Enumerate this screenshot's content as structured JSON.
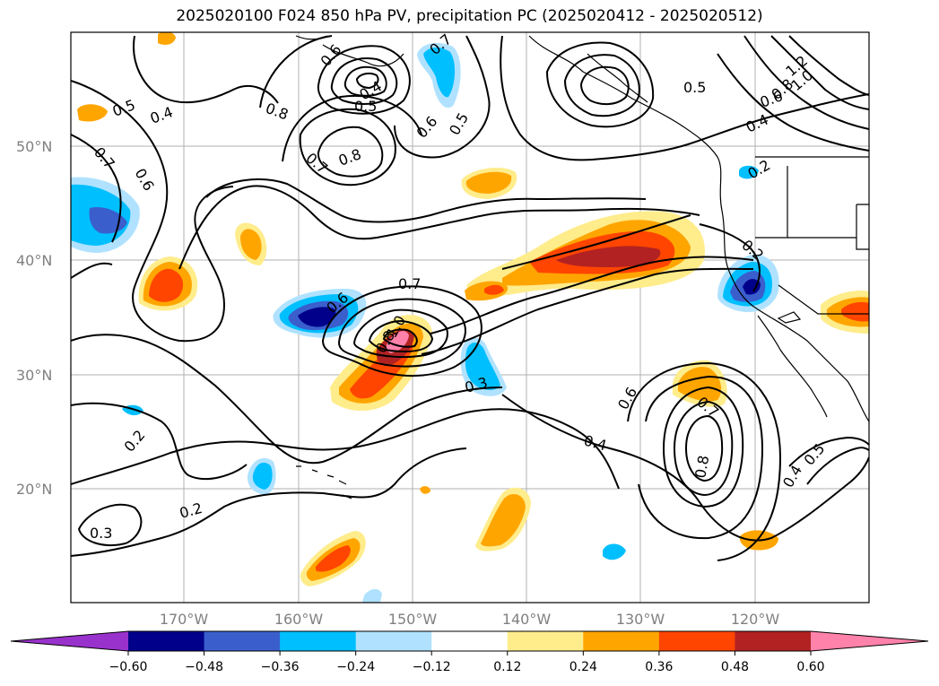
{
  "title": "2025020100 F024 850 hPa PV, precipitation PC (2025020412 - 2025020512)",
  "lat_labels": [
    "50°N",
    "40°N",
    "30°N",
    "20°N"
  ],
  "lon_labels": [
    "170°W",
    "160°W",
    "150°W",
    "140°W",
    "130°W",
    "120°W"
  ],
  "contour_labels": [
    "0.5",
    "0.4",
    "0.7",
    "0.6",
    "0.8",
    "0.4",
    "0.5",
    "0.7",
    "0.8",
    "0.6",
    "0.5",
    "0.6",
    "0.7",
    "0.5",
    "1.2",
    "1.0",
    "0.8",
    "0.6",
    "0.4",
    "0.2",
    "0.2",
    "0.6",
    "0.7",
    "0.8",
    "1.0",
    "0.3",
    "0.6",
    "0.7",
    "0.4",
    "0.8",
    "0.4",
    "0.5",
    "0.2",
    "0.3",
    "0.2"
  ],
  "colorbar": {
    "colors": [
      "#9932cc",
      "#00008b",
      "#3a5fcd",
      "#00bfff",
      "#b0e2ff",
      "#ffffff",
      "#ffec8b",
      "#ffa500",
      "#ff4500",
      "#b22222",
      "#ff82ab"
    ],
    "tick_labels": [
      "−0.60",
      "−0.48",
      "−0.36",
      "−0.24",
      "−0.12",
      "0.12",
      "0.24",
      "0.36",
      "0.48",
      "0.60"
    ]
  },
  "chart_data": {
    "type": "contour_map",
    "variable_lines": "850 hPa PV",
    "variable_fill": "precipitation PC",
    "init": "2025020100",
    "forecast_hour": "F024",
    "valid_window": "2025020412 - 2025020512",
    "lon_range": [
      -180,
      -110
    ],
    "lat_range": [
      10,
      60
    ],
    "fill_levels": [
      -0.6,
      -0.48,
      -0.36,
      -0.24,
      -0.12,
      0.12,
      0.24,
      0.36,
      0.48,
      0.6
    ],
    "pv_contour_levels": [
      0.2,
      0.3,
      0.4,
      0.5,
      0.6,
      0.7,
      0.8,
      1.0,
      1.2
    ]
  }
}
